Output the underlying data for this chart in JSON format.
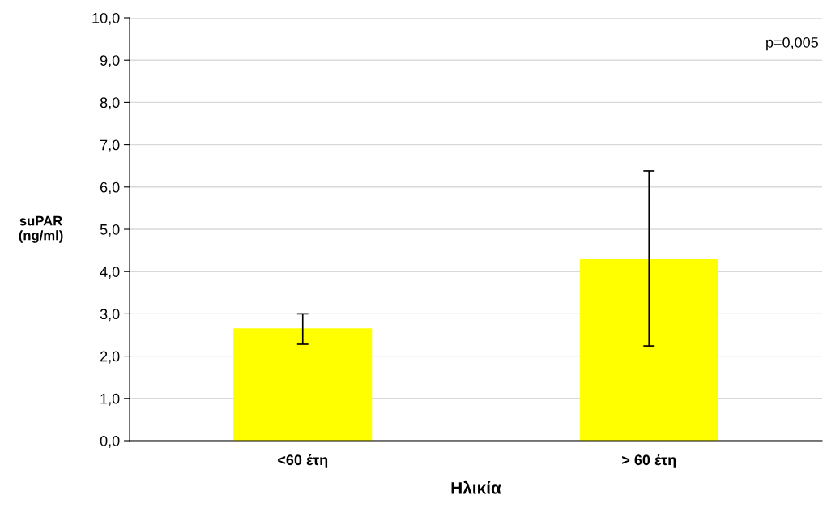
{
  "chart_data": {
    "type": "bar",
    "xlabel": "Ηλικία",
    "ylabel": "suPAR\n(ng/ml)",
    "categories": [
      "<60 έτη",
      "> 60 έτη"
    ],
    "values": [
      2.66,
      4.29
    ],
    "errors": [
      [
        2.28,
        3.0
      ],
      [
        2.24,
        6.38
      ]
    ],
    "color": "#ffff00",
    "ylim": [
      0,
      10
    ],
    "yticks": [
      {
        "value": 0,
        "label": "0,0"
      },
      {
        "value": 1,
        "label": "1,0"
      },
      {
        "value": 2,
        "label": "2,0"
      },
      {
        "value": 3,
        "label": "3,0"
      },
      {
        "value": 4,
        "label": "4,0"
      },
      {
        "value": 5,
        "label": "5,0"
      },
      {
        "value": 6,
        "label": "6,0"
      },
      {
        "value": 7,
        "label": "7,0"
      },
      {
        "value": 8,
        "label": "8,0"
      },
      {
        "value": 9,
        "label": "9,0"
      },
      {
        "value": 10,
        "label": "10,0"
      }
    ],
    "grid": "y",
    "annotations": [
      "p=0,005"
    ]
  }
}
